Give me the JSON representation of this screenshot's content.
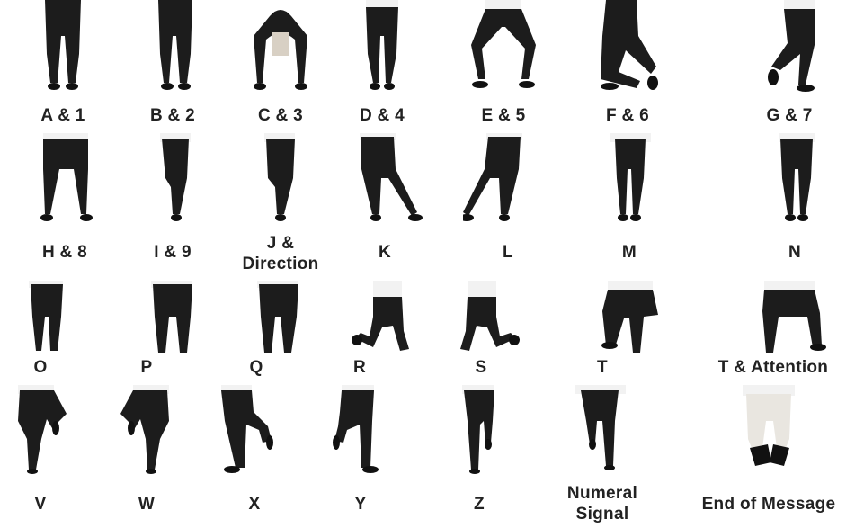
{
  "labels": {
    "a1": "A & 1",
    "b2": "B & 2",
    "c3": "C & 3",
    "d4": "D & 4",
    "e5": "E & 5",
    "f6": "F & 6",
    "g7": "G & 7",
    "h8": "H & 8",
    "i9": "I & 9",
    "j": "J &",
    "j_dir": "Direction",
    "k": "K",
    "l": "L",
    "m": "M",
    "n": "N",
    "o": "O",
    "p": "P",
    "q": "Q",
    "r": "R",
    "s": "S",
    "t": "T",
    "t_attention": "T & Attention",
    "v": "V",
    "w": "W",
    "x": "X",
    "y": "Y",
    "z": "Z",
    "numeral_1": "Numeral",
    "numeral_2": "Signal",
    "end_of_message": "End of Message"
  },
  "colors": {
    "trouser": "#1c1c1c",
    "shoe": "#111111",
    "shirt": "#f2f2f2",
    "skin": "#d8d0c4",
    "label": "#222222"
  }
}
